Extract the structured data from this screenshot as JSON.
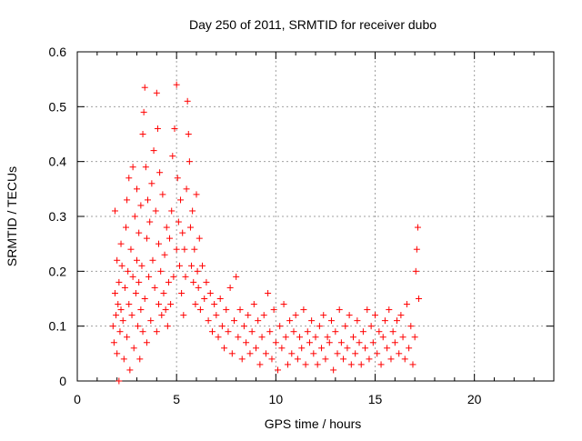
{
  "chart_data": {
    "type": "scatter",
    "title": "Day 250 of 2011, SRMTID for receiver dubo",
    "xlabel": "GPS time / hours",
    "ylabel": "SRMTID / TECUs",
    "xlim": [
      0,
      24
    ],
    "ylim": [
      0,
      0.6
    ],
    "xticks": [
      0,
      5,
      10,
      15,
      20
    ],
    "yticks": [
      0,
      0.1,
      0.2,
      0.3,
      0.4,
      0.5,
      0.6
    ],
    "xtick_labels": [
      "0",
      "5",
      "10",
      "15",
      "20"
    ],
    "ytick_labels": [
      "0",
      "0.1",
      "0.2",
      "0.3",
      "0.4",
      "0.5",
      "0.6"
    ],
    "grid": true,
    "marker": "+",
    "series_color": "#ff0000",
    "series": [
      {
        "name": "SRMTID",
        "points": [
          [
            1.8,
            0.1
          ],
          [
            1.85,
            0.07
          ],
          [
            1.9,
            0.16
          ],
          [
            1.9,
            0.31
          ],
          [
            1.95,
            0.12
          ],
          [
            2.0,
            0.22
          ],
          [
            2.0,
            0.05
          ],
          [
            2.05,
            0.14
          ],
          [
            2.1,
            0.18
          ],
          [
            2.1,
            0.0
          ],
          [
            2.15,
            0.09
          ],
          [
            2.2,
            0.25
          ],
          [
            2.2,
            0.13
          ],
          [
            2.25,
            0.21
          ],
          [
            2.3,
            0.11
          ],
          [
            2.35,
            0.04
          ],
          [
            2.4,
            0.17
          ],
          [
            2.45,
            0.28
          ],
          [
            2.5,
            0.33
          ],
          [
            2.5,
            0.08
          ],
          [
            2.55,
            0.2
          ],
          [
            2.6,
            0.37
          ],
          [
            2.6,
            0.14
          ],
          [
            2.65,
            0.02
          ],
          [
            2.7,
            0.24
          ],
          [
            2.75,
            0.12
          ],
          [
            2.8,
            0.39
          ],
          [
            2.8,
            0.19
          ],
          [
            2.85,
            0.06
          ],
          [
            2.9,
            0.3
          ],
          [
            2.95,
            0.16
          ],
          [
            3.0,
            0.35
          ],
          [
            3.0,
            0.22
          ],
          [
            3.05,
            0.1
          ],
          [
            3.1,
            0.27
          ],
          [
            3.1,
            0.18
          ],
          [
            3.15,
            0.04
          ],
          [
            3.2,
            0.32
          ],
          [
            3.2,
            0.13
          ],
          [
            3.25,
            0.21
          ],
          [
            3.3,
            0.45
          ],
          [
            3.3,
            0.09
          ],
          [
            3.35,
            0.49
          ],
          [
            3.4,
            0.535
          ],
          [
            3.4,
            0.15
          ],
          [
            3.45,
            0.39
          ],
          [
            3.5,
            0.26
          ],
          [
            3.5,
            0.07
          ],
          [
            3.55,
            0.33
          ],
          [
            3.6,
            0.19
          ],
          [
            3.65,
            0.29
          ],
          [
            3.7,
            0.11
          ],
          [
            3.75,
            0.36
          ],
          [
            3.8,
            0.22
          ],
          [
            3.85,
            0.42
          ],
          [
            3.9,
            0.17
          ],
          [
            3.95,
            0.31
          ],
          [
            4.0,
            0.525
          ],
          [
            4.0,
            0.09
          ],
          [
            4.05,
            0.46
          ],
          [
            4.1,
            0.25
          ],
          [
            4.1,
            0.14
          ],
          [
            4.15,
            0.38
          ],
          [
            4.2,
            0.2
          ],
          [
            4.25,
            0.12
          ],
          [
            4.3,
            0.34
          ],
          [
            4.35,
            0.16
          ],
          [
            4.4,
            0.23
          ],
          [
            4.45,
            0.13
          ],
          [
            4.5,
            0.28
          ],
          [
            4.55,
            0.1
          ],
          [
            4.6,
            0.18
          ],
          [
            4.65,
            0.26
          ],
          [
            4.7,
            0.14
          ],
          [
            4.75,
            0.31
          ],
          [
            4.8,
            0.41
          ],
          [
            4.85,
            0.19
          ],
          [
            4.9,
            0.46
          ],
          [
            5.0,
            0.54
          ],
          [
            5.0,
            0.24
          ],
          [
            5.05,
            0.37
          ],
          [
            5.1,
            0.29
          ],
          [
            5.15,
            0.21
          ],
          [
            5.2,
            0.33
          ],
          [
            5.25,
            0.16
          ],
          [
            5.3,
            0.27
          ],
          [
            5.35,
            0.12
          ],
          [
            5.4,
            0.24
          ],
          [
            5.45,
            0.19
          ],
          [
            5.5,
            0.35
          ],
          [
            5.55,
            0.51
          ],
          [
            5.6,
            0.45
          ],
          [
            5.65,
            0.4
          ],
          [
            5.7,
            0.28
          ],
          [
            5.75,
            0.21
          ],
          [
            5.8,
            0.31
          ],
          [
            5.85,
            0.18
          ],
          [
            5.9,
            0.24
          ],
          [
            5.95,
            0.14
          ],
          [
            6.0,
            0.34
          ],
          [
            6.05,
            0.2
          ],
          [
            6.1,
            0.17
          ],
          [
            6.15,
            0.26
          ],
          [
            6.2,
            0.13
          ],
          [
            6.3,
            0.21
          ],
          [
            6.4,
            0.15
          ],
          [
            6.5,
            0.18
          ],
          [
            6.6,
            0.11
          ],
          [
            6.7,
            0.16
          ],
          [
            6.8,
            0.09
          ],
          [
            6.9,
            0.14
          ],
          [
            7.0,
            0.12
          ],
          [
            7.1,
            0.08
          ],
          [
            7.2,
            0.15
          ],
          [
            7.3,
            0.1
          ],
          [
            7.4,
            0.06
          ],
          [
            7.5,
            0.13
          ],
          [
            7.6,
            0.09
          ],
          [
            7.7,
            0.17
          ],
          [
            7.8,
            0.05
          ],
          [
            7.9,
            0.11
          ],
          [
            8.0,
            0.19
          ],
          [
            8.1,
            0.08
          ],
          [
            8.2,
            0.13
          ],
          [
            8.3,
            0.04
          ],
          [
            8.4,
            0.1
          ],
          [
            8.5,
            0.07
          ],
          [
            8.6,
            0.12
          ],
          [
            8.7,
            0.05
          ],
          [
            8.8,
            0.09
          ],
          [
            8.9,
            0.14
          ],
          [
            9.0,
            0.06
          ],
          [
            9.1,
            0.11
          ],
          [
            9.2,
            0.03
          ],
          [
            9.3,
            0.08
          ],
          [
            9.4,
            0.12
          ],
          [
            9.5,
            0.05
          ],
          [
            9.6,
            0.16
          ],
          [
            9.7,
            0.09
          ],
          [
            9.8,
            0.04
          ],
          [
            9.9,
            0.13
          ],
          [
            10.0,
            0.07
          ],
          [
            10.1,
            0.02
          ],
          [
            10.2,
            0.1
          ],
          [
            10.3,
            0.06
          ],
          [
            10.4,
            0.14
          ],
          [
            10.5,
            0.08
          ],
          [
            10.6,
            0.03
          ],
          [
            10.7,
            0.11
          ],
          [
            10.8,
            0.05
          ],
          [
            10.9,
            0.09
          ],
          [
            11.0,
            0.12
          ],
          [
            11.1,
            0.04
          ],
          [
            11.2,
            0.08
          ],
          [
            11.3,
            0.06
          ],
          [
            11.4,
            0.13
          ],
          [
            11.5,
            0.03
          ],
          [
            11.6,
            0.09
          ],
          [
            11.7,
            0.07
          ],
          [
            11.8,
            0.11
          ],
          [
            11.9,
            0.05
          ],
          [
            12.0,
            0.08
          ],
          [
            12.1,
            0.03
          ],
          [
            12.2,
            0.1
          ],
          [
            12.3,
            0.06
          ],
          [
            12.4,
            0.12
          ],
          [
            12.5,
            0.04
          ],
          [
            12.6,
            0.08
          ],
          [
            12.7,
            0.07
          ],
          [
            12.8,
            0.11
          ],
          [
            12.9,
            0.02
          ],
          [
            13.0,
            0.09
          ],
          [
            13.1,
            0.05
          ],
          [
            13.2,
            0.13
          ],
          [
            13.3,
            0.07
          ],
          [
            13.4,
            0.04
          ],
          [
            13.5,
            0.1
          ],
          [
            13.6,
            0.06
          ],
          [
            13.7,
            0.12
          ],
          [
            13.8,
            0.03
          ],
          [
            13.9,
            0.08
          ],
          [
            14.0,
            0.05
          ],
          [
            14.1,
            0.11
          ],
          [
            14.2,
            0.07
          ],
          [
            14.3,
            0.03
          ],
          [
            14.4,
            0.09
          ],
          [
            14.5,
            0.06
          ],
          [
            14.6,
            0.13
          ],
          [
            14.7,
            0.04
          ],
          [
            14.8,
            0.1
          ],
          [
            14.9,
            0.07
          ],
          [
            15.0,
            0.12
          ],
          [
            15.1,
            0.05
          ],
          [
            15.2,
            0.09
          ],
          [
            15.3,
            0.03
          ],
          [
            15.4,
            0.08
          ],
          [
            15.5,
            0.11
          ],
          [
            15.6,
            0.06
          ],
          [
            15.7,
            0.13
          ],
          [
            15.8,
            0.04
          ],
          [
            15.9,
            0.09
          ],
          [
            16.0,
            0.07
          ],
          [
            16.1,
            0.11
          ],
          [
            16.2,
            0.05
          ],
          [
            16.3,
            0.12
          ],
          [
            16.4,
            0.08
          ],
          [
            16.5,
            0.04
          ],
          [
            16.6,
            0.14
          ],
          [
            16.7,
            0.06
          ],
          [
            16.8,
            0.1
          ],
          [
            16.9,
            0.03
          ],
          [
            17.0,
            0.08
          ],
          [
            17.05,
            0.2
          ],
          [
            17.1,
            0.24
          ],
          [
            17.15,
            0.28
          ],
          [
            17.2,
            0.15
          ]
        ]
      }
    ]
  }
}
